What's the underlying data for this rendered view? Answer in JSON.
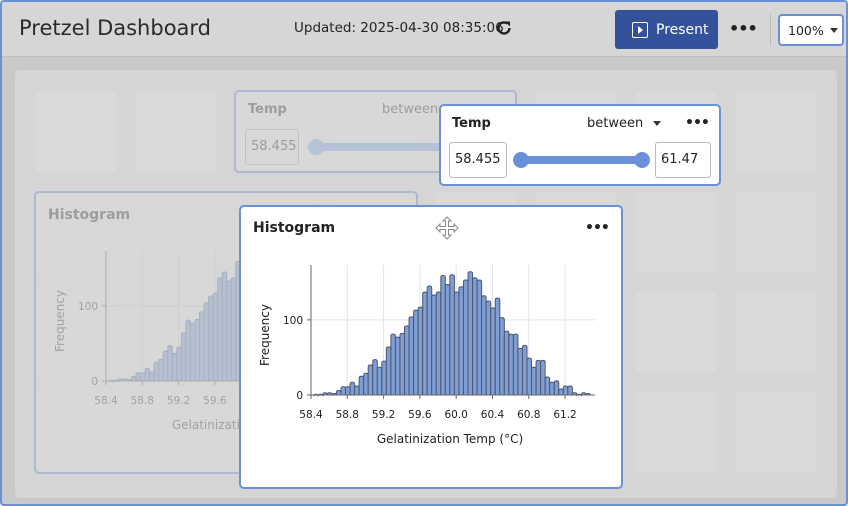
{
  "header": {
    "title": "Pretzel Dashboard",
    "updated": "Updated: 2025-04-30 08:35:06",
    "present_label": "Present",
    "zoom": "100%",
    "refresh_icon": "refresh-icon",
    "more_icon": "more-horizontal-icon"
  },
  "filter": {
    "title": "Temp",
    "operator": "between",
    "min": "58.455",
    "max": "61.47",
    "slider_min": 58.455,
    "slider_max": 61.47
  },
  "histogram": {
    "title": "Histogram",
    "move_icon": "move-icon"
  },
  "colors": {
    "accent": "#6a90d8",
    "present": "#34529c",
    "bar": "#7f9fd4"
  },
  "chart_data": {
    "type": "bar",
    "title": "Histogram",
    "xlabel": "Gelatinization Temp (°C)",
    "ylabel": "Frequency",
    "bin_width": 0.05,
    "x": [
      58.45,
      58.5,
      58.55,
      58.6,
      58.65,
      58.7,
      58.75,
      58.8,
      58.85,
      58.9,
      58.95,
      59.0,
      59.05,
      59.1,
      59.15,
      59.2,
      59.25,
      59.3,
      59.35,
      59.4,
      59.45,
      59.5,
      59.55,
      59.6,
      59.65,
      59.7,
      59.75,
      59.8,
      59.85,
      59.9,
      59.95,
      60.0,
      60.05,
      60.1,
      60.15,
      60.2,
      60.25,
      60.3,
      60.35,
      60.4,
      60.45,
      60.5,
      60.55,
      60.6,
      60.65,
      60.7,
      60.75,
      60.8,
      60.85,
      60.9,
      60.95,
      61.0,
      61.05,
      61.1,
      61.15,
      61.2,
      61.25,
      61.3,
      61.35,
      61.4,
      61.45
    ],
    "values": [
      1,
      1,
      3,
      3,
      2,
      6,
      11,
      11,
      17,
      12,
      25,
      29,
      40,
      47,
      37,
      45,
      64,
      81,
      77,
      82,
      92,
      104,
      113,
      117,
      137,
      145,
      133,
      137,
      159,
      147,
      160,
      137,
      144,
      153,
      164,
      156,
      153,
      132,
      125,
      116,
      129,
      103,
      85,
      81,
      81,
      62,
      66,
      49,
      37,
      46,
      46,
      24,
      17,
      19,
      8,
      12,
      12,
      3,
      1,
      3,
      2
    ],
    "xticks": [
      "58.4",
      "58.8",
      "59.2",
      "59.6",
      "60.0",
      "60.4",
      "60.8",
      "61.2"
    ],
    "yticks": [
      "0",
      "100"
    ],
    "xlim": [
      58.4,
      61.53
    ],
    "ylim": [
      0,
      173
    ],
    "grid": true
  }
}
